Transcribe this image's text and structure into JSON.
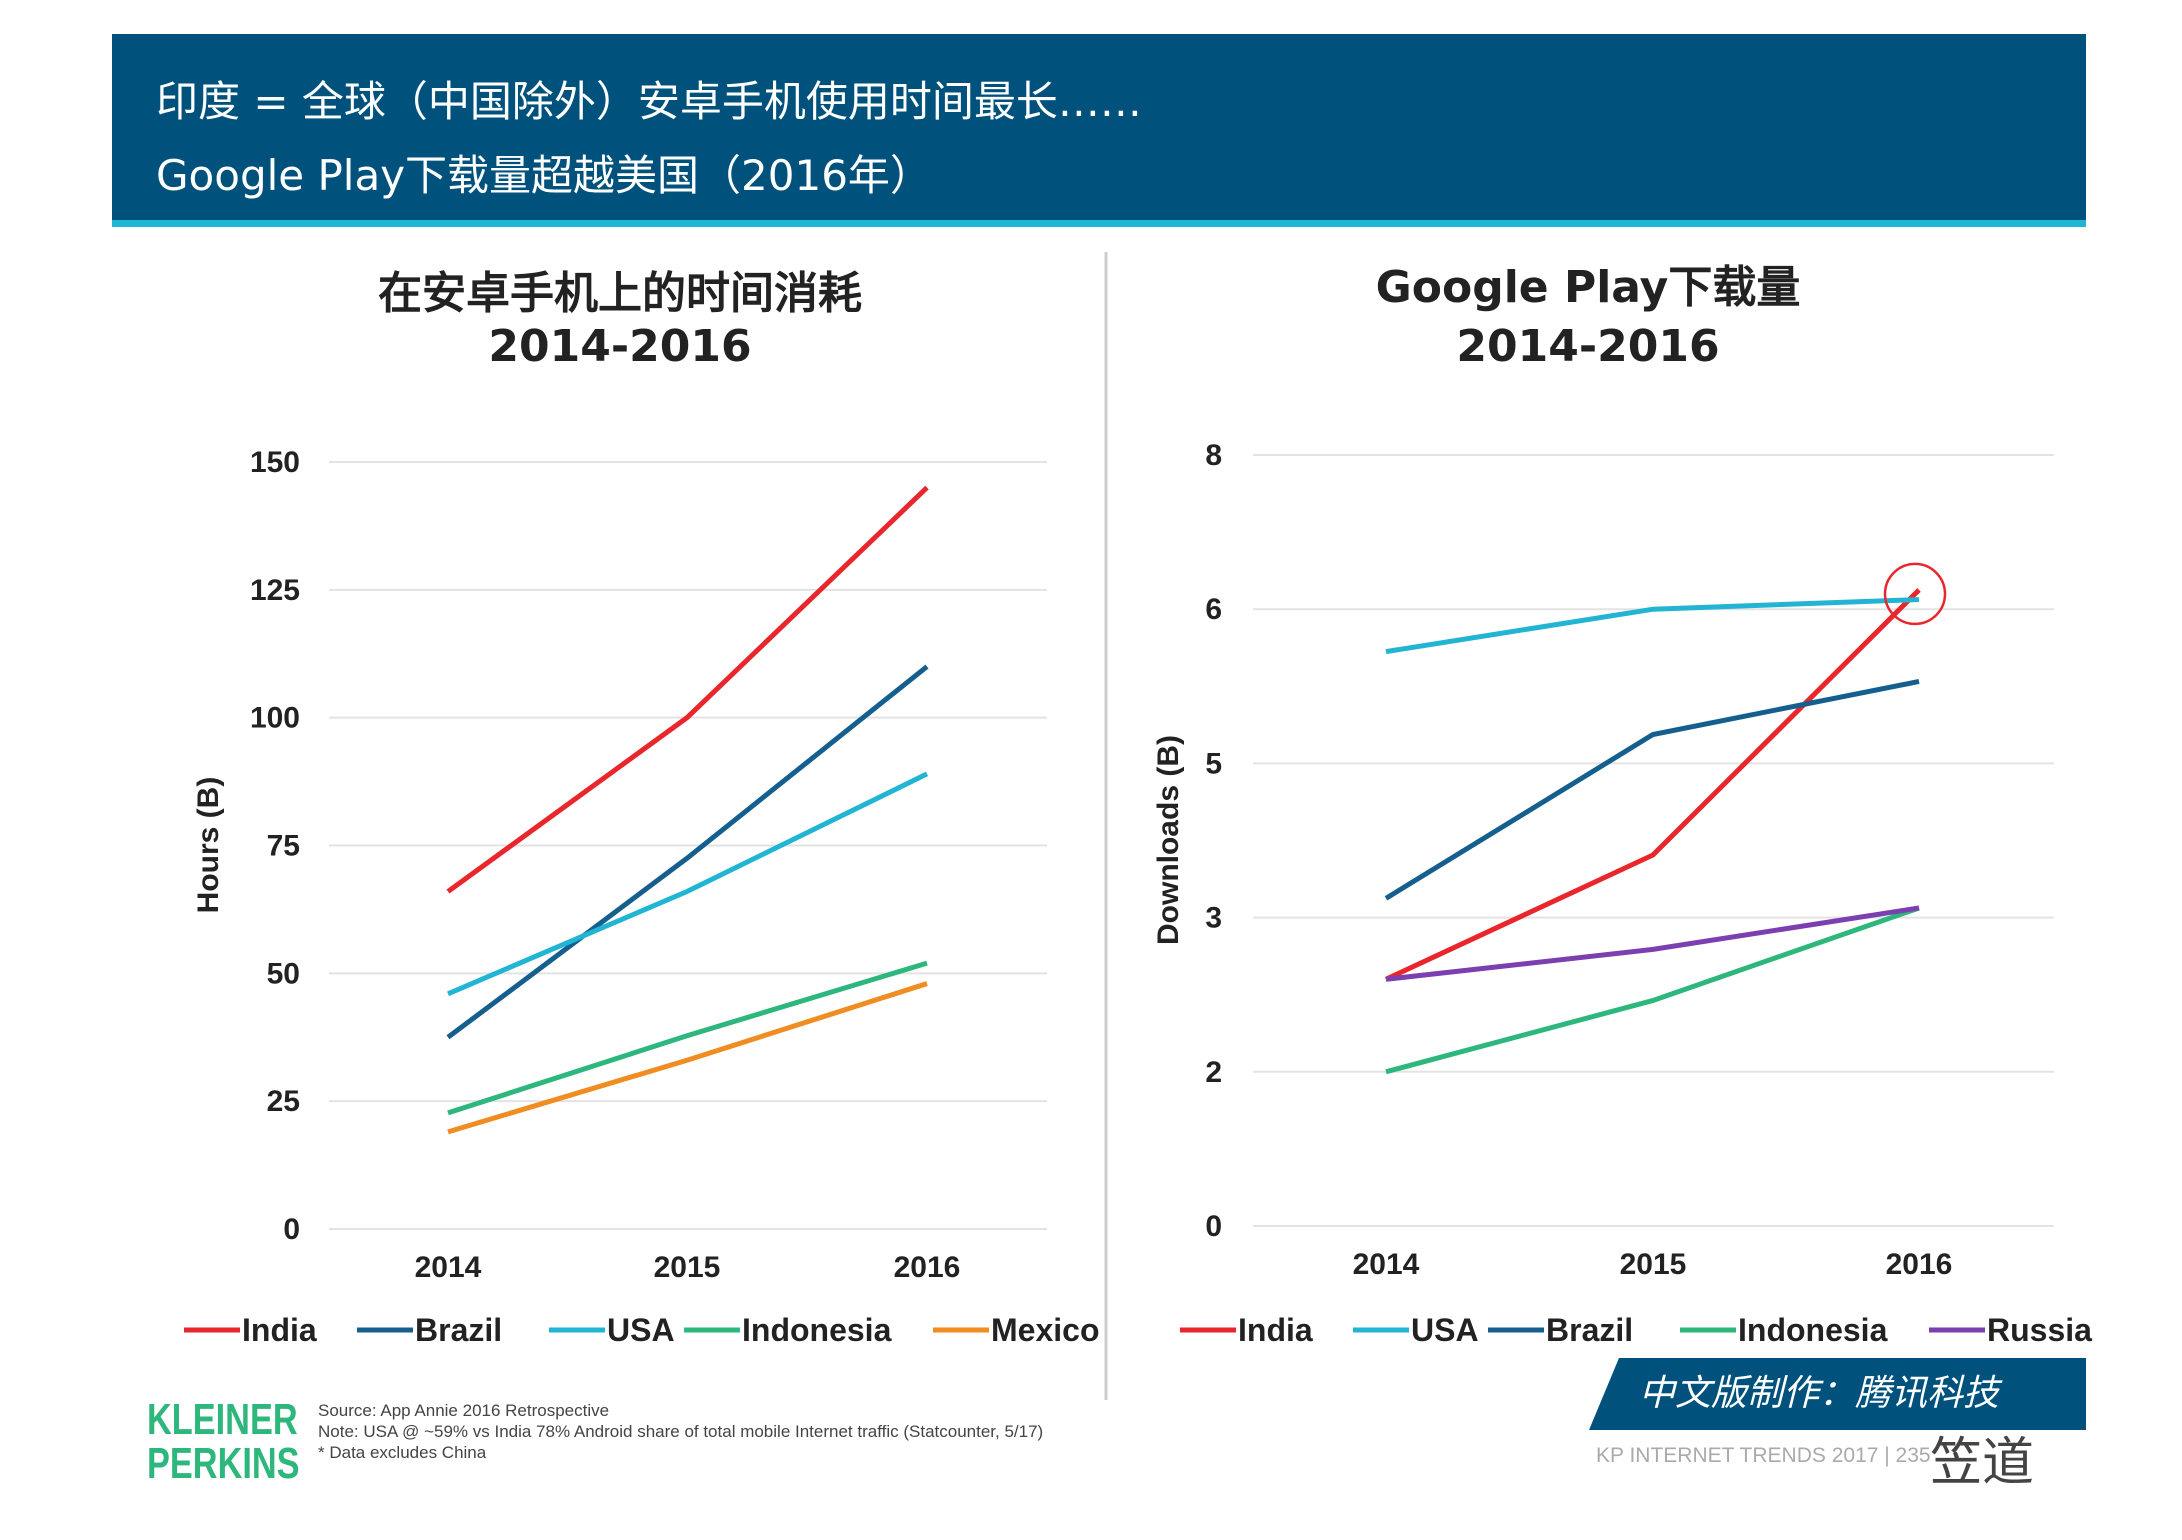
{
  "header": {
    "line1": "印度 = 全球（中国除外）安卓手机使用时间最长……",
    "line2": "Google Play下载量超越美国（2016年）"
  },
  "chart_data": [
    {
      "type": "line",
      "title": "在安卓手机上的时间消耗",
      "subtitle": "2014-2016",
      "ylabel": "Hours (B)",
      "xlabel": "",
      "categories": [
        "2014",
        "2015",
        "2016"
      ],
      "ylim": [
        0,
        150
      ],
      "yticks": [
        0,
        25,
        50,
        75,
        100,
        125,
        150
      ],
      "yticklabels": [
        "0",
        "25",
        "50",
        "75",
        "100",
        "125",
        "150"
      ],
      "grid": true,
      "legend": "bottom",
      "series": [
        {
          "name": "India",
          "color": "#e8262b",
          "values": [
            66,
            100,
            145
          ]
        },
        {
          "name": "Brazil",
          "color": "#155f8f",
          "values": [
            37.5,
            72.5,
            110
          ]
        },
        {
          "name": "USA",
          "color": "#22b5d3",
          "values": [
            46,
            66,
            89
          ]
        },
        {
          "name": "Indonesia",
          "color": "#2eb77c",
          "values": [
            22.7,
            37.8,
            52
          ]
        },
        {
          "name": "Mexico",
          "color": "#ef8c22",
          "values": [
            19,
            33,
            48
          ]
        }
      ]
    },
    {
      "type": "line",
      "title": "Google Play下载量",
      "subtitle": "2014-2016",
      "ylabel": "Downloads (B)",
      "xlabel": "",
      "categories": [
        "2014",
        "2015",
        "2016"
      ],
      "ylim": [
        0,
        8
      ],
      "yticks": [
        0,
        1.6,
        3.2,
        4.8,
        6.4,
        8
      ],
      "yticklabels": [
        "0",
        "2",
        "3",
        "5",
        "6",
        "8"
      ],
      "grid": true,
      "legend": "bottom",
      "annotation": "red circle highlighting India 2016",
      "series": [
        {
          "name": "India",
          "color": "#e8262b",
          "values": [
            2.56,
            3.85,
            6.6
          ]
        },
        {
          "name": "USA",
          "color": "#22b5d3",
          "values": [
            5.96,
            6.4,
            6.5
          ]
        },
        {
          "name": "Brazil",
          "color": "#155f8f",
          "values": [
            3.4,
            5.1,
            5.65
          ]
        },
        {
          "name": "Indonesia",
          "color": "#2eb77c",
          "values": [
            1.6,
            2.34,
            3.3
          ]
        },
        {
          "name": "Russia",
          "color": "#7b3fb0",
          "values": [
            2.56,
            2.87,
            3.3
          ]
        }
      ]
    }
  ],
  "footer": {
    "logo": [
      "KLEINER",
      "PERKINS"
    ],
    "notes": [
      "Source: App Annie 2016 Retrospective",
      "Note: USA @ ~59% vs India 78% Android share of total mobile Internet traffic (Statcounter, 5/17)",
      "* Data excludes China"
    ],
    "badge": "中文版制作：腾讯科技",
    "trends": "KP INTERNET TRENDS 2017  |  235",
    "watermark": "笠道"
  }
}
